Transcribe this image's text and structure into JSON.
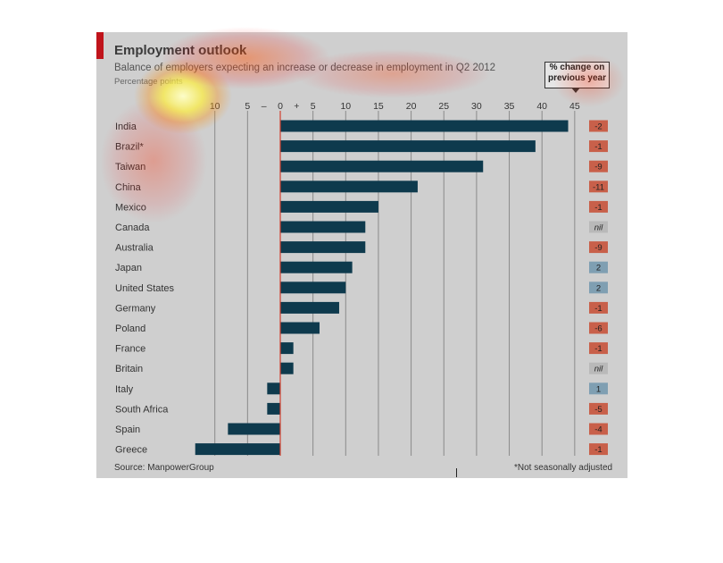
{
  "title": "Employment outlook",
  "subtitle": "Balance of employers expecting an increase or decrease in employment in Q2 2012",
  "unit_label": "Percentage points",
  "legend": {
    "line1": "% change on",
    "line2": "previous year"
  },
  "source": "Source: ManpowerGroup",
  "footnote": "*Not seasonally adjusted",
  "colors": {
    "bar": "#0e3a4d",
    "negative_badge": "#c8604a",
    "positive_badge": "#7f9fb2",
    "nil_badge": "#b9b9b9",
    "zero_line": "#d0402f"
  },
  "chart_data": {
    "type": "bar",
    "orientation": "horizontal",
    "categories": [
      "India",
      "Brazil*",
      "Taiwan",
      "China",
      "Mexico",
      "Canada",
      "Australia",
      "Japan",
      "United States",
      "Germany",
      "Poland",
      "France",
      "Britain",
      "Italy",
      "South Africa",
      "Spain",
      "Greece"
    ],
    "values": [
      44,
      39,
      31,
      21,
      15,
      13,
      13,
      11,
      10,
      9,
      6,
      2,
      2,
      -2,
      -2,
      -8,
      -13
    ],
    "change_on_previous_year": [
      "-2",
      "-1",
      "-9",
      "-11",
      "-1",
      "nil",
      "-9",
      "2",
      "2",
      "-1",
      "-6",
      "-1",
      "nil",
      "1",
      "-5",
      "-4",
      "-1"
    ],
    "xlim": [
      -15,
      45
    ],
    "x_ticks": [
      -10,
      -5,
      0,
      5,
      10,
      15,
      20,
      25,
      30,
      35,
      40,
      45
    ],
    "x_tick_labels": [
      "10",
      "5",
      "0",
      "5",
      "10",
      "15",
      "20",
      "25",
      "30",
      "35",
      "40",
      "45"
    ],
    "sign_labels": {
      "minus": "–",
      "plus": "+"
    },
    "grid": true
  }
}
